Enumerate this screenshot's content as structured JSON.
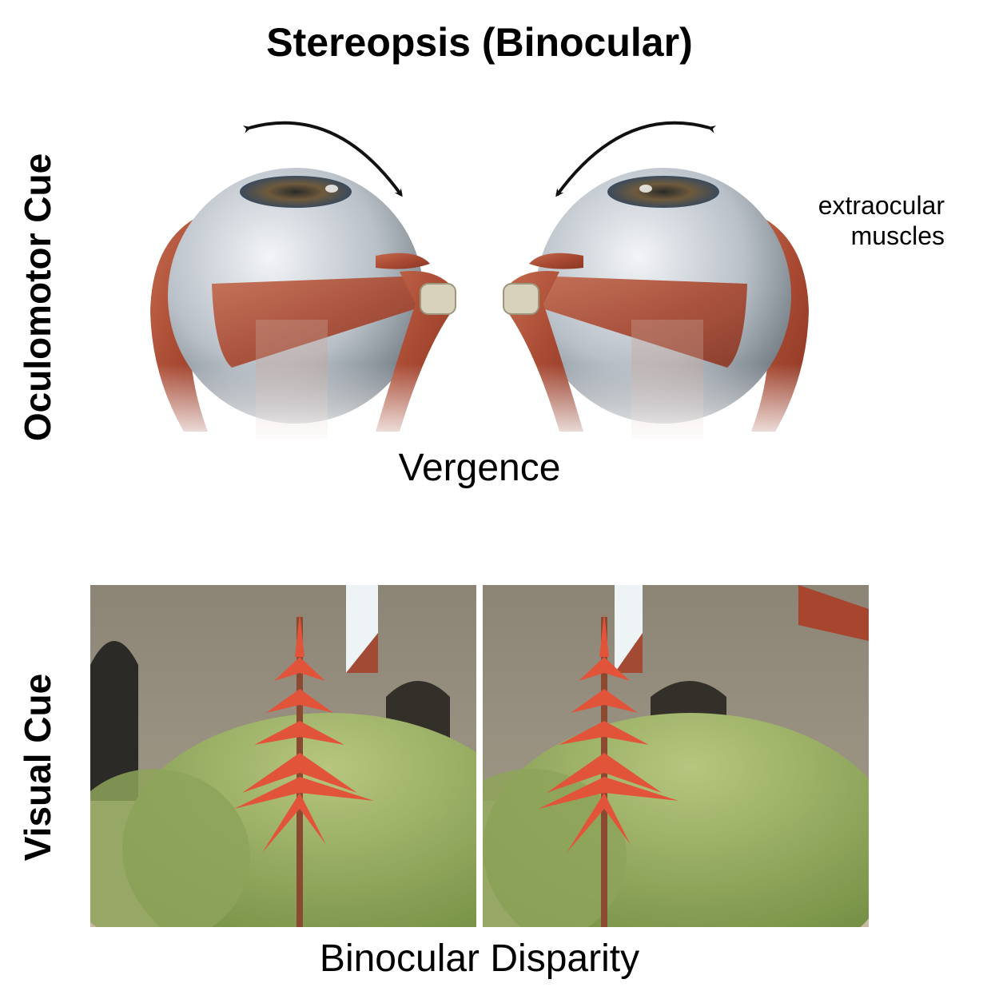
{
  "title": "Stereopsis (Binocular)",
  "labels": {
    "oculomotor": "Oculomotor Cue",
    "visual": "Visual Cue"
  },
  "captions": {
    "vergence": "Vergence",
    "disparity": "Binocular Disparity"
  },
  "annotation": {
    "line1": "extraocular",
    "line2": "muscles"
  }
}
